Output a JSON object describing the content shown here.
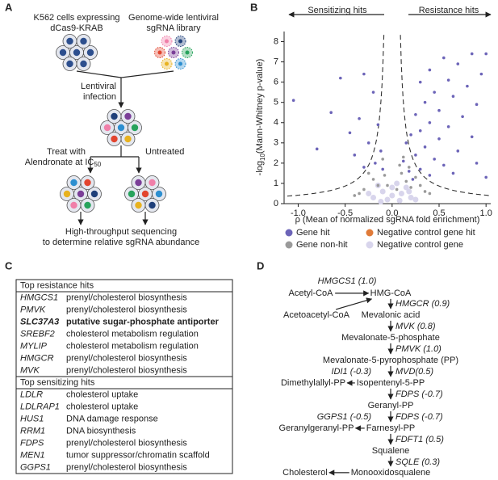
{
  "panel_labels": [
    "A",
    "B",
    "C",
    "D"
  ],
  "panel_a": {
    "cells_label": [
      "K562 cells expressing",
      "dCas9-KRAB"
    ],
    "library_label": [
      "Genome-wide lentiviral",
      "sgRNA library"
    ],
    "infection_label": [
      "Lentiviral",
      "infection"
    ],
    "treat_label": [
      "Treat with",
      "Alendronate at IC"
    ],
    "treat_subscript": "50",
    "untreated_label": "Untreated",
    "sequencing_label": [
      "High-throughput sequencing",
      "to determine relative sgRNA abundance"
    ]
  },
  "chart_data": {
    "type": "scatter",
    "arrow_labels": [
      "Sensitizing hits",
      "Resistance hits"
    ],
    "xlabel": "ρ (Mean of normalized sgRNA fold enrichment)",
    "ylabel": [
      "-log",
      "10",
      "(Mann-Whitney p-value)"
    ],
    "xlim": [
      -1.15,
      1.05
    ],
    "ylim": [
      0,
      8.5
    ],
    "xticks": [
      {
        "value": -1,
        "label": "-1.0"
      },
      -0.5,
      {
        "value": 0,
        "label": "0.0"
      },
      0.5,
      {
        "value": 1,
        "label": "1.0"
      }
    ],
    "yticks": [
      0,
      1,
      2,
      3,
      4,
      5,
      6,
      7,
      8
    ],
    "legend": "bottom",
    "series": [
      {
        "name": "Gene hit",
        "color": "#6c64b8",
        "x": [
          0.85,
          1.0,
          0.55,
          0.7,
          0.4,
          0.95,
          0.6,
          0.3,
          0.8,
          0.45,
          0.65,
          0.35,
          0.9,
          0.5,
          0.25,
          0.75,
          0.4,
          0.6,
          0.3,
          0.2,
          0.5,
          0.85,
          0.15,
          0.35,
          0.7,
          0.25,
          0.45,
          0.12,
          0.9,
          0.55,
          0.3,
          0.18,
          0.65,
          0.4,
          1.0,
          0.22,
          -0.55,
          -0.3,
          -0.2,
          -1.05,
          -0.65,
          -0.35,
          -0.15,
          -0.45,
          -0.25,
          -0.12,
          -0.8,
          -0.4,
          -0.18,
          -0.1,
          -0.3
        ],
        "values": [
          7.4,
          7.4,
          7.2,
          6.9,
          6.6,
          6.4,
          6.1,
          6.0,
          5.8,
          5.5,
          5.3,
          5.0,
          4.9,
          4.6,
          4.4,
          4.3,
          4.0,
          3.8,
          3.6,
          3.4,
          3.2,
          3.3,
          3.0,
          2.8,
          2.6,
          2.4,
          2.2,
          2.1,
          2.0,
          1.9,
          1.7,
          1.6,
          1.5,
          1.4,
          1.3,
          1.2,
          6.2,
          6.4,
          5.5,
          5.1,
          4.5,
          4.2,
          3.9,
          3.5,
          3.0,
          2.6,
          2.7,
          2.4,
          2.0,
          1.7,
          1.8
        ]
      },
      {
        "name": "Gene non-hit",
        "color": "#9a9a9a",
        "x": [
          -0.25,
          -0.2,
          -0.15,
          -0.3,
          -0.1,
          0.1,
          0.15,
          0.2,
          0.25,
          0.3,
          0.12,
          0.35,
          -0.05,
          0.05,
          -0.35,
          0.4,
          -0.4,
          0.08,
          -0.08,
          0.18
        ],
        "values": [
          1.5,
          1.2,
          0.9,
          0.7,
          2.2,
          1.5,
          1.1,
          0.8,
          1.3,
          0.9,
          2.3,
          0.6,
          0.9,
          0.7,
          0.5,
          0.5,
          0.4,
          1.9,
          1.4,
          1.8
        ]
      },
      {
        "name": "Negative control gene hit",
        "color": "#e07b39",
        "x": [],
        "values": []
      },
      {
        "name": "Negative control gene",
        "color": "#d8d5ec",
        "x": [
          -0.2,
          -0.1,
          0,
          0.1,
          0.2,
          -0.15,
          0.05,
          0.15,
          -0.05,
          0.25,
          -0.25,
          0.08,
          -0.12,
          0,
          0.18
        ],
        "values": [
          0.3,
          0.6,
          0.4,
          0.5,
          0.3,
          0.9,
          1.0,
          0.8,
          0.2,
          0.2,
          0.5,
          0.15,
          0.1,
          0.8,
          0.6
        ]
      }
    ]
  },
  "table": {
    "sections": [
      {
        "title": "Top resistance hits",
        "rows": [
          {
            "gene": "HMGCS1",
            "function": "prenyl/cholesterol biosynthesis"
          },
          {
            "gene": "PMVK",
            "function": "prenyl/cholesterol biosynthesis"
          },
          {
            "gene": "SLC37A3",
            "function": "putative sugar-phosphate antiporter",
            "bold": true
          },
          {
            "gene": "SREBF2",
            "function": "cholesterol metabolism regulation"
          },
          {
            "gene": "MYLIP",
            "function": "cholesterol metabolism regulation"
          },
          {
            "gene": "HMGCR",
            "function": "prenyl/cholesterol biosynthesis"
          },
          {
            "gene": "MVK",
            "function": "prenyl/cholesterol biosynthesis"
          }
        ]
      },
      {
        "title": "Top sensitizing hits",
        "rows": [
          {
            "gene": "LDLR",
            "function": "cholesterol uptake"
          },
          {
            "gene": "LDLRAP1",
            "function": "cholesterol uptake"
          },
          {
            "gene": "HUS1",
            "function": "DNA damage response"
          },
          {
            "gene": "RRM1",
            "function": "DNA biosynthesis"
          },
          {
            "gene": "FDPS",
            "function": "prenyl/cholesterol biosynthesis"
          },
          {
            "gene": "MEN1",
            "function": "tumor suppressor/chromatin scaffold"
          },
          {
            "gene": "GGPS1",
            "function": "prenyl/cholesterol biosynthesis"
          }
        ]
      }
    ]
  },
  "pathway": {
    "metabolites": [
      "Acetyl-CoA",
      "HMG-CoA",
      "Acetoacetyl-CoA",
      "Mevalonic acid",
      "Mevalonate-5-phosphate",
      "Mevalonate-5-pyrophosphate (PP)",
      "Dimethylallyl-PP",
      "Isopentenyl-5-PP",
      "Geranyl-PP",
      "Geranylgeranyl-PP",
      "Farnesyl-PP",
      "Squalene",
      "Cholesterol",
      "Monooxidosqualene"
    ],
    "enzymes": [
      {
        "label": "HMGCS1 (1.0)",
        "color": "#d9302b"
      },
      {
        "label": "HMGCR (0.9)",
        "color": "#d9302b"
      },
      {
        "label": "MVK (0.8)",
        "color": "#d9302b"
      },
      {
        "label": "PMVK (1.0)",
        "color": "#d9302b"
      },
      {
        "label": "MVD(0.5)",
        "color": "#d9302b"
      },
      {
        "label": "IDI1 (-0.3)",
        "color": "#3a8fc9"
      },
      {
        "label": "FDPS (-0.7)",
        "color": "#3a8fc9"
      },
      {
        "label": "GGPS1 (-0.5)",
        "color": "#3a8fc9"
      },
      {
        "label": "FDPS (-0.7)",
        "color": "#3a8fc9"
      },
      {
        "label": "FDFT1 (0.5)",
        "color": "#d9302b"
      },
      {
        "label": "SQLE (0.3)",
        "color": "#d9302b"
      }
    ]
  }
}
